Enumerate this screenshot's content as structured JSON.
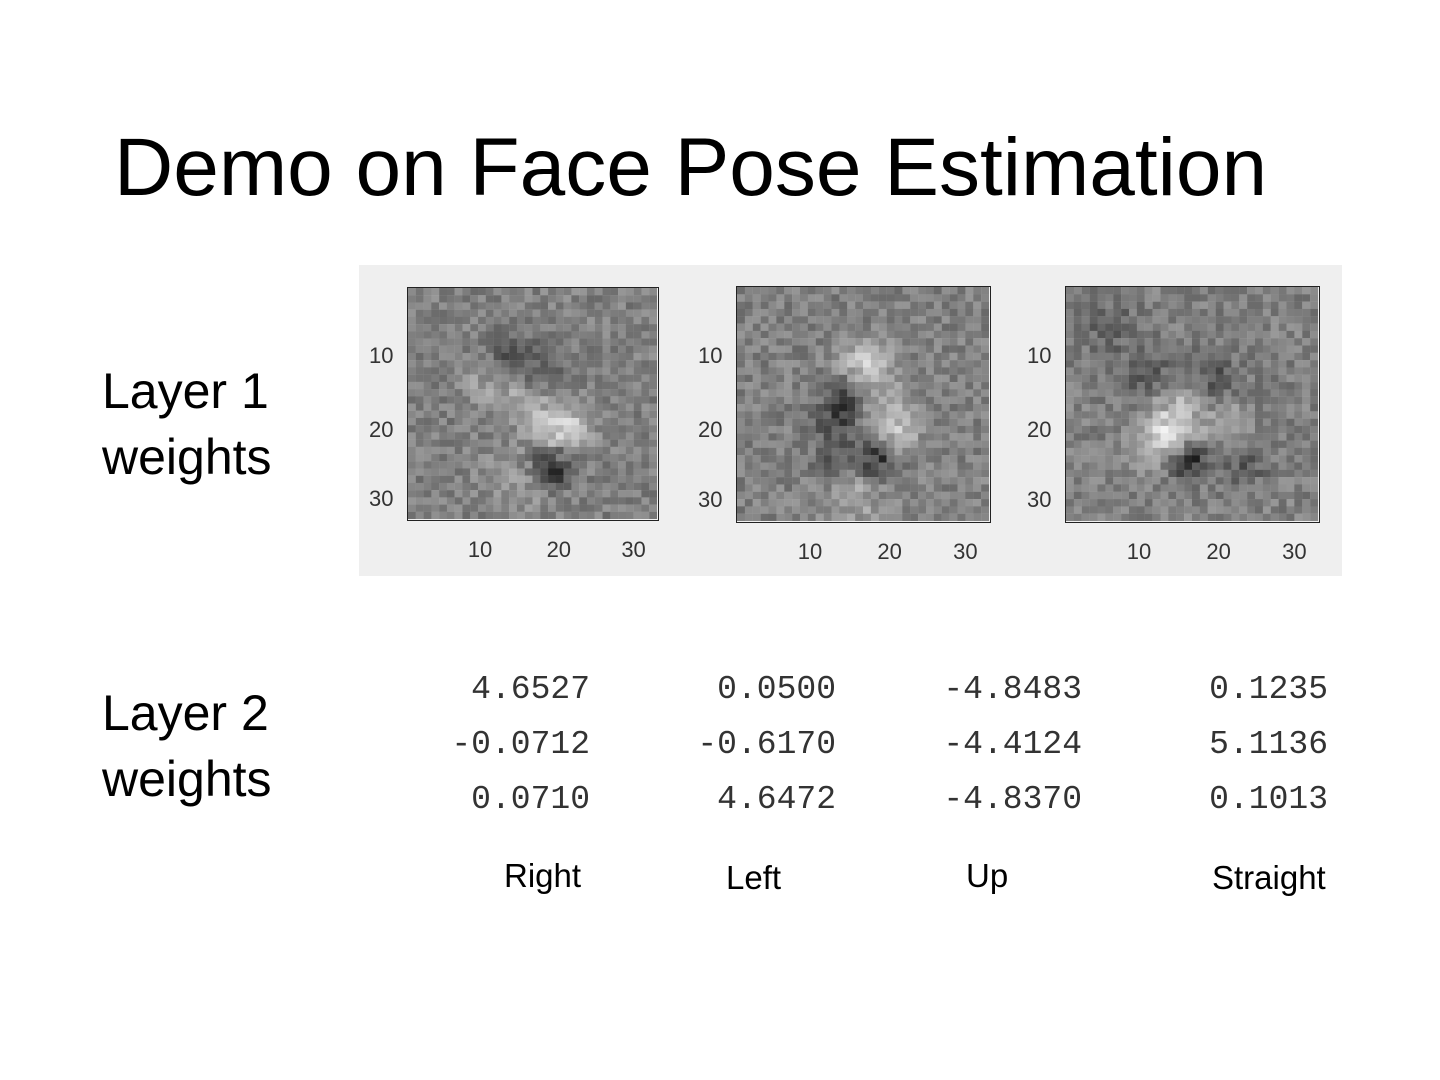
{
  "slide": {
    "title": "Demo on Face Pose Estimation"
  },
  "layer1": {
    "label_line1": "Layer 1",
    "label_line2": "weights",
    "grid_size": 32,
    "tick_labels": [
      "10",
      "20",
      "30"
    ],
    "maps": [
      {
        "name": "weight-map-1",
        "pattern": "left-tilted face, bright highlight center-right, dark spot lower middle"
      },
      {
        "name": "weight-map-2",
        "pattern": "frontal face, bright spot upper center, dark spots scattered"
      },
      {
        "name": "weight-map-3",
        "pattern": "face shifted left, bright patch lower left, dark spot lower center"
      }
    ]
  },
  "layer2": {
    "label_line1": "Layer 2",
    "label_line2": "weights",
    "columns": [
      {
        "label": "Right",
        "values": [
          "4.6527",
          "-0.0712",
          "0.0710"
        ]
      },
      {
        "label": "Left",
        "values": [
          "0.0500",
          "-0.6170",
          "4.6472"
        ]
      },
      {
        "label": "Up",
        "values": [
          "-4.8483",
          "-4.4124",
          "-4.8370"
        ]
      },
      {
        "label": "Straight",
        "values": [
          "0.1235",
          "5.1136",
          "0.1013"
        ]
      }
    ]
  }
}
